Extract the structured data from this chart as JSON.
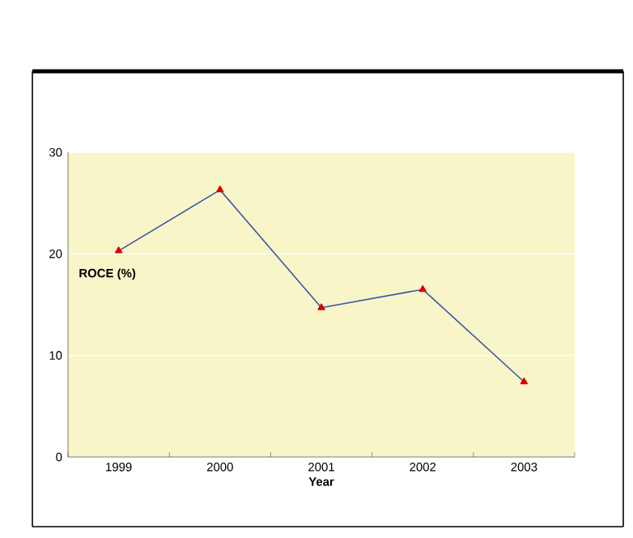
{
  "chart_data": {
    "type": "line",
    "xlabel": "Year",
    "ylabel": "ROCE (%)",
    "categories": [
      "1999",
      "2000",
      "2001",
      "2002",
      "2003"
    ],
    "series": [
      {
        "color": "#3a55a8",
        "values": [
          20.3,
          26.3,
          14.7,
          16.5,
          7.4
        ]
      }
    ],
    "ylim": [
      0,
      30
    ],
    "yticks": [
      0,
      10,
      20,
      30
    ],
    "grid": "y",
    "marker": "triangle",
    "line_style": "solid"
  }
}
